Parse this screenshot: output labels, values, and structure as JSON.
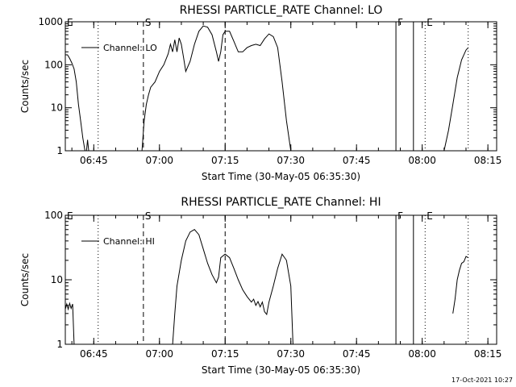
{
  "chart_data": [
    {
      "type": "line",
      "title": "RHESSI PARTICLE_RATE Channel: LO",
      "xlabel": "Start Time (30-May-05 06:35:30)",
      "ylabel": "Counts/sec",
      "yscale": "log",
      "xlim": [
        "06:38:30",
        "08:17:00"
      ],
      "ylim": [
        1,
        1000
      ],
      "xticks": [
        "06:45",
        "07:00",
        "07:15",
        "07:30",
        "07:45",
        "08:00",
        "08:15"
      ],
      "yticks": [
        "1",
        "10",
        "100",
        "1000"
      ],
      "legend": "Channel: LO",
      "legend_position": "top-left",
      "markers": [
        {
          "label": "E",
          "time": "06:38:30",
          "style": "none"
        },
        {
          "label": "",
          "time": "06:46:00",
          "style": "dotted"
        },
        {
          "label": "S",
          "time": "06:56:20",
          "style": "dashed"
        },
        {
          "label": "",
          "time": "07:15:00",
          "style": "dashed"
        },
        {
          "label": "F",
          "time": "07:54:00",
          "style": "solid"
        },
        {
          "label": "",
          "time": "07:58:00",
          "style": "solid"
        },
        {
          "label": "E",
          "time": "08:00:40",
          "style": "dotted"
        },
        {
          "label": "",
          "time": "08:10:30",
          "style": "dotted"
        }
      ],
      "segments": [
        [
          [
            "06:38:30",
            170
          ],
          [
            "06:39:00",
            170
          ],
          [
            "06:39:30",
            140
          ],
          [
            "06:40:00",
            110
          ],
          [
            "06:40:30",
            80
          ],
          [
            "06:41:00",
            40
          ],
          [
            "06:41:30",
            12
          ],
          [
            "06:42:00",
            5
          ],
          [
            "06:42:30",
            2
          ],
          [
            "06:43:00",
            1
          ]
        ],
        [
          [
            "06:43:20",
            1
          ],
          [
            "06:43:35",
            1.8
          ],
          [
            "06:43:50",
            1
          ]
        ],
        [
          [
            "06:56:00",
            1
          ],
          [
            "06:56:30",
            5
          ],
          [
            "06:57:00",
            12
          ],
          [
            "06:57:30",
            20
          ],
          [
            "06:58:00",
            30
          ],
          [
            "06:59:00",
            40
          ],
          [
            "07:00:00",
            70
          ],
          [
            "07:01:00",
            100
          ],
          [
            "07:02:00",
            180
          ],
          [
            "07:02:30",
            300
          ],
          [
            "07:03:00",
            200
          ],
          [
            "07:03:30",
            380
          ],
          [
            "07:04:00",
            200
          ],
          [
            "07:04:30",
            420
          ],
          [
            "07:05:00",
            300
          ],
          [
            "07:05:30",
            150
          ],
          [
            "07:06:00",
            70
          ],
          [
            "07:07:00",
            120
          ],
          [
            "07:08:00",
            300
          ],
          [
            "07:09:00",
            600
          ],
          [
            "07:10:00",
            800
          ],
          [
            "07:11:00",
            750
          ],
          [
            "07:12:00",
            500
          ],
          [
            "07:13:00",
            200
          ],
          [
            "07:13:30",
            120
          ],
          [
            "07:14:00",
            200
          ],
          [
            "07:14:30",
            500
          ],
          [
            "07:15:00",
            600
          ],
          [
            "07:16:00",
            600
          ],
          [
            "07:17:00",
            350
          ],
          [
            "07:18:00",
            200
          ],
          [
            "07:19:00",
            200
          ],
          [
            "07:20:00",
            250
          ],
          [
            "07:21:00",
            280
          ],
          [
            "07:22:00",
            300
          ],
          [
            "07:23:00",
            280
          ],
          [
            "07:24:00",
            400
          ],
          [
            "07:25:00",
            520
          ],
          [
            "07:26:00",
            450
          ],
          [
            "07:27:00",
            250
          ],
          [
            "07:28:00",
            40
          ],
          [
            "07:29:00",
            5
          ],
          [
            "07:30:00",
            1
          ]
        ],
        [
          [
            "08:05:00",
            1
          ],
          [
            "08:06:00",
            3
          ],
          [
            "08:07:00",
            12
          ],
          [
            "08:08:00",
            50
          ],
          [
            "08:09:00",
            130
          ],
          [
            "08:10:00",
            220
          ],
          [
            "08:10:30",
            250
          ]
        ]
      ]
    },
    {
      "type": "line",
      "title": "RHESSI PARTICLE_RATE Channel: HI",
      "xlabel": "Start Time (30-May-05 06:35:30)",
      "ylabel": "Counts/sec",
      "yscale": "log",
      "xlim": [
        "06:38:30",
        "08:17:00"
      ],
      "ylim": [
        1,
        100
      ],
      "xticks": [
        "06:45",
        "07:00",
        "07:15",
        "07:30",
        "07:45",
        "08:00",
        "08:15"
      ],
      "yticks": [
        "1",
        "10",
        "100"
      ],
      "legend": "Channel: HI",
      "legend_position": "top-left",
      "markers": [
        {
          "label": "E",
          "time": "06:38:30",
          "style": "none"
        },
        {
          "label": "",
          "time": "06:46:00",
          "style": "dotted"
        },
        {
          "label": "S",
          "time": "06:56:20",
          "style": "dashed"
        },
        {
          "label": "",
          "time": "07:15:00",
          "style": "dashed"
        },
        {
          "label": "F",
          "time": "07:54:00",
          "style": "solid"
        },
        {
          "label": "",
          "time": "07:58:00",
          "style": "solid"
        },
        {
          "label": "E",
          "time": "08:00:40",
          "style": "dotted"
        },
        {
          "label": "",
          "time": "08:10:30",
          "style": "dotted"
        }
      ],
      "segments": [
        [
          [
            "06:38:30",
            3.5
          ],
          [
            "06:38:50",
            4.2
          ],
          [
            "06:39:10",
            3.5
          ],
          [
            "06:39:30",
            4.3
          ],
          [
            "06:39:50",
            3.6
          ],
          [
            "06:40:10",
            4.2
          ],
          [
            "06:40:30",
            1
          ]
        ],
        [
          [
            "07:03:00",
            1
          ],
          [
            "07:03:30",
            3
          ],
          [
            "07:04:00",
            8
          ],
          [
            "07:05:00",
            20
          ],
          [
            "07:06:00",
            40
          ],
          [
            "07:07:00",
            55
          ],
          [
            "07:08:00",
            60
          ],
          [
            "07:09:00",
            50
          ],
          [
            "07:10:00",
            30
          ],
          [
            "07:11:00",
            18
          ],
          [
            "07:12:00",
            12
          ],
          [
            "07:13:00",
            9
          ],
          [
            "07:13:30",
            11
          ],
          [
            "07:14:00",
            22
          ],
          [
            "07:15:00",
            25
          ],
          [
            "07:16:00",
            22
          ],
          [
            "07:17:00",
            15
          ],
          [
            "07:18:00",
            10
          ],
          [
            "07:19:00",
            7
          ],
          [
            "07:20:00",
            5.5
          ],
          [
            "07:21:00",
            4.5
          ],
          [
            "07:21:30",
            5
          ],
          [
            "07:22:00",
            4
          ],
          [
            "07:22:30",
            4.6
          ],
          [
            "07:23:00",
            3.8
          ],
          [
            "07:23:30",
            4.5
          ],
          [
            "07:24:00",
            3.2
          ],
          [
            "07:24:30",
            2.9
          ],
          [
            "07:25:00",
            4.5
          ],
          [
            "07:26:00",
            8
          ],
          [
            "07:27:00",
            15
          ],
          [
            "07:28:00",
            25
          ],
          [
            "07:29:00",
            20
          ],
          [
            "07:30:00",
            8
          ],
          [
            "07:30:30",
            1
          ]
        ],
        [
          [
            "08:07:00",
            3
          ],
          [
            "08:07:30",
            5
          ],
          [
            "08:08:00",
            10
          ],
          [
            "08:08:30",
            14
          ],
          [
            "08:09:00",
            18
          ],
          [
            "08:09:30",
            19
          ],
          [
            "08:10:00",
            23
          ],
          [
            "08:10:30",
            22
          ]
        ]
      ]
    }
  ],
  "timestamp": "17-Oct-2021 10:27"
}
